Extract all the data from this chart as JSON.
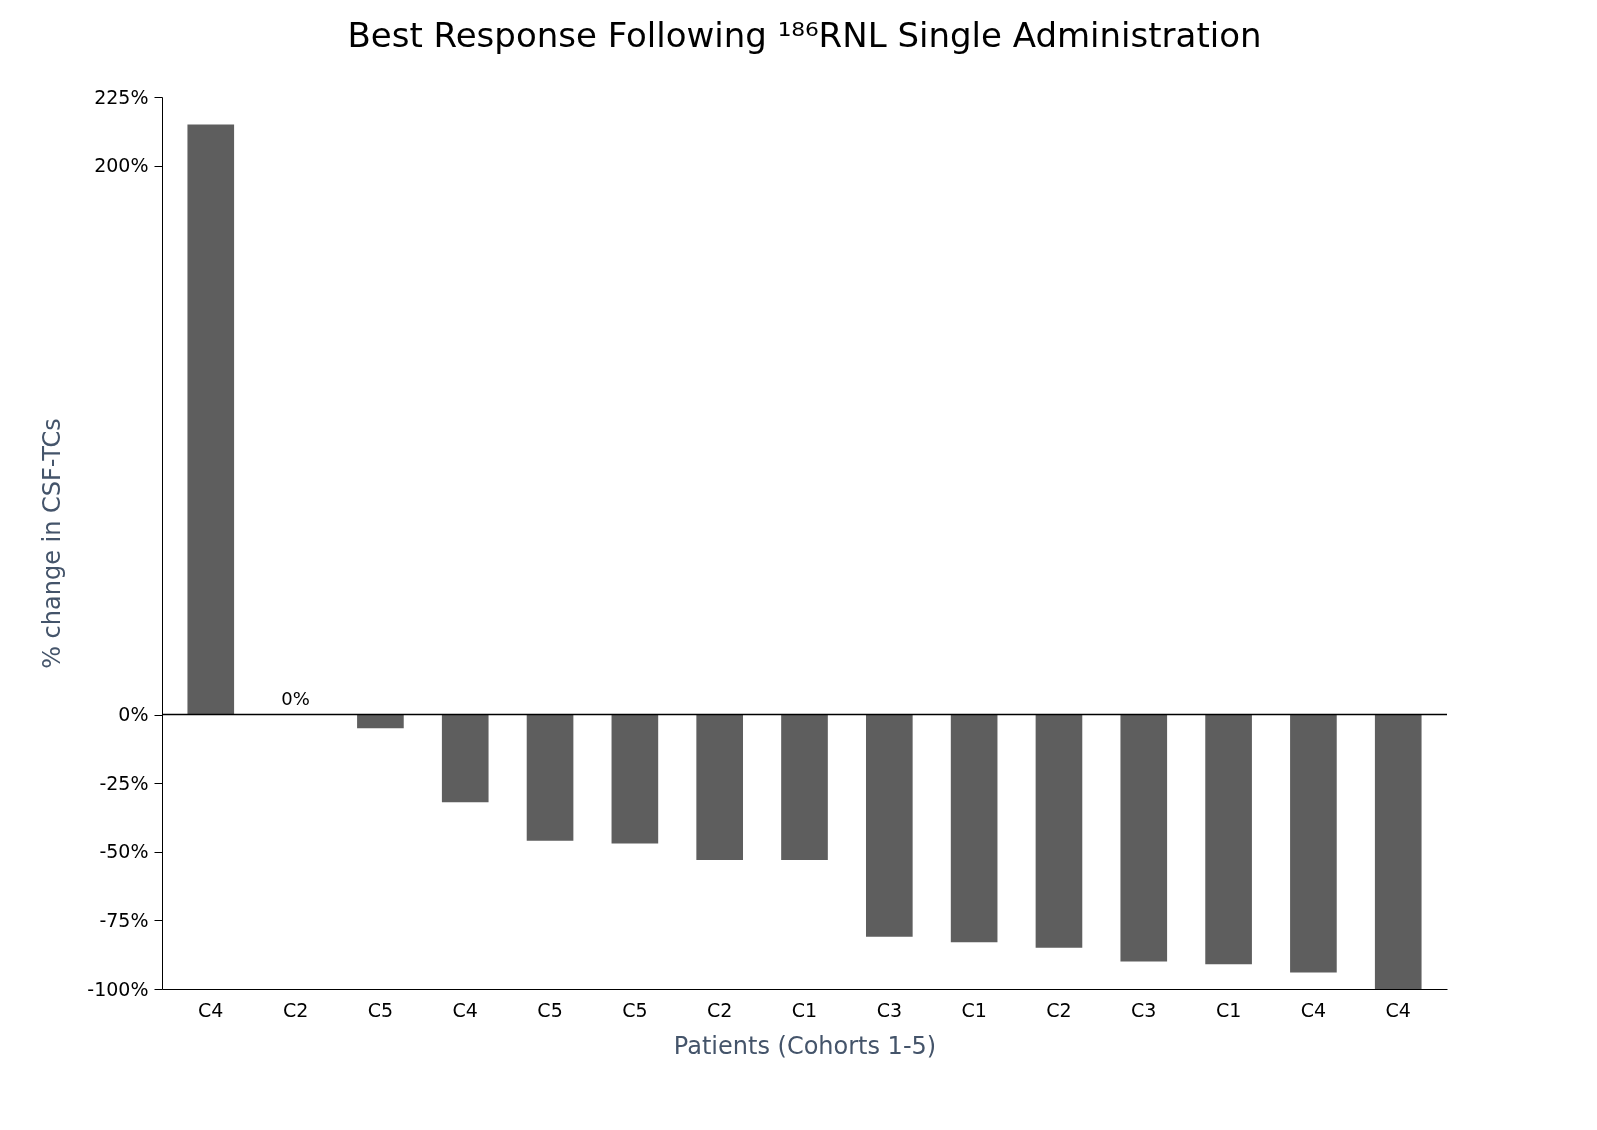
{
  "chart_data": {
    "type": "bar",
    "title": "Best Response Following ¹⁸⁶RNL Single Administration",
    "xlabel": "Patients (Cohorts 1-5)",
    "ylabel": "% change in CSF-TCs",
    "categories": [
      "C4",
      "C2",
      "C5",
      "C4",
      "C5",
      "C5",
      "C2",
      "C1",
      "C3",
      "C1",
      "C2",
      "C3",
      "C1",
      "C4",
      "C4"
    ],
    "values": [
      215,
      0,
      -5,
      -32,
      -46,
      -47,
      -53,
      -53,
      -81,
      -83,
      -85,
      -90,
      -91,
      -94,
      -100
    ],
    "value_labels": [
      null,
      "0%",
      null,
      null,
      null,
      null,
      null,
      null,
      null,
      null,
      null,
      null,
      null,
      null,
      null
    ],
    "color": "#5e5e5e",
    "ylim": [
      -100,
      225
    ],
    "yticks": [
      {
        "value": -100,
        "label": "-100%"
      },
      {
        "value": -75,
        "label": "-75%"
      },
      {
        "value": -50,
        "label": "-50%"
      },
      {
        "value": -25,
        "label": "-25%"
      },
      {
        "value": 0,
        "label": "0%"
      },
      {
        "value": 200,
        "label": "200%"
      },
      {
        "value": 225,
        "label": "225%"
      }
    ],
    "ref_lines": [
      {
        "axis": "y",
        "value": 0
      }
    ],
    "grid": false
  }
}
